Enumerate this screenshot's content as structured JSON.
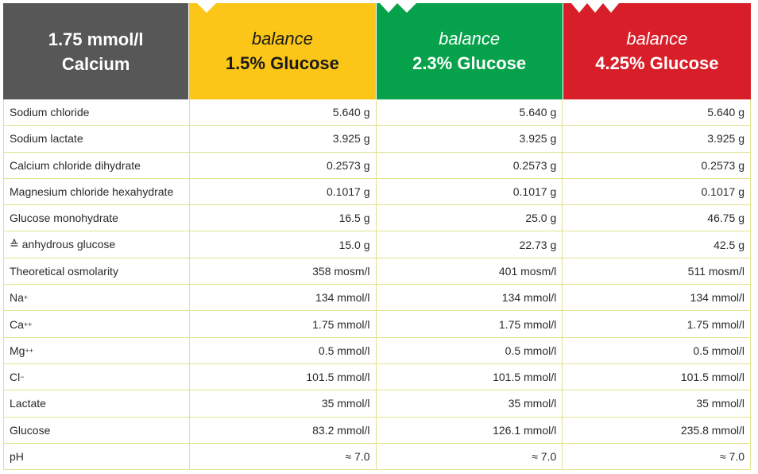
{
  "header": {
    "title_line1": "1.75 mmol/l",
    "title_line2": "Calcium",
    "columns": [
      {
        "brand": "balance",
        "concentration": "1.5% Glucose",
        "color": "#fbc617"
      },
      {
        "brand": "balance",
        "concentration": "2.3% Glucose",
        "color": "#06a24b"
      },
      {
        "brand": "balance",
        "concentration": "4.25% Glucose",
        "color": "#d81e29"
      }
    ]
  },
  "rows": [
    {
      "label": "Sodium chloride",
      "values": [
        "5.640 g",
        "5.640 g",
        "5.640 g"
      ]
    },
    {
      "label": "Sodium lactate",
      "values": [
        "3.925 g",
        "3.925 g",
        "3.925 g"
      ]
    },
    {
      "label": "Calcium chloride dihydrate",
      "values": [
        "0.2573 g",
        "0.2573 g",
        "0.2573 g"
      ]
    },
    {
      "label": "Magnesium chloride hexahydrate",
      "values": [
        "0.1017 g",
        "0.1017 g",
        "0.1017 g"
      ]
    },
    {
      "label": "Glucose monohydrate",
      "values": [
        "16.5 g",
        "25.0 g",
        "46.75 g"
      ]
    },
    {
      "label": "≙ anhydrous glucose",
      "values": [
        "15.0 g",
        "22.73 g",
        "42.5 g"
      ]
    },
    {
      "label": "Theoretical osmolarity",
      "values": [
        "358 mosm/l",
        "401 mosm/l",
        "511 mosm/l"
      ]
    },
    {
      "label": "Na+",
      "values": [
        "134 mmol/l",
        "134 mmol/l",
        "134 mmol/l"
      ]
    },
    {
      "label": "Ca++",
      "values": [
        "1.75 mmol/l",
        "1.75 mmol/l",
        "1.75 mmol/l"
      ]
    },
    {
      "label": "Mg++",
      "values": [
        "0.5 mmol/l",
        "0.5 mmol/l",
        "0.5 mmol/l"
      ]
    },
    {
      "label": "Cl−",
      "values": [
        "101.5 mmol/l",
        "101.5 mmol/l",
        "101.5 mmol/l"
      ]
    },
    {
      "label": "Lactate",
      "values": [
        "35 mmol/l",
        "35 mmol/l",
        "35 mmol/l"
      ]
    },
    {
      "label": "Glucose",
      "values": [
        "83.2 mmol/l",
        "126.1 mmol/l",
        "235.8 mmol/l"
      ]
    },
    {
      "label": "pH",
      "values": [
        "≈ 7.0",
        "≈ 7.0",
        "≈ 7.0"
      ]
    }
  ]
}
